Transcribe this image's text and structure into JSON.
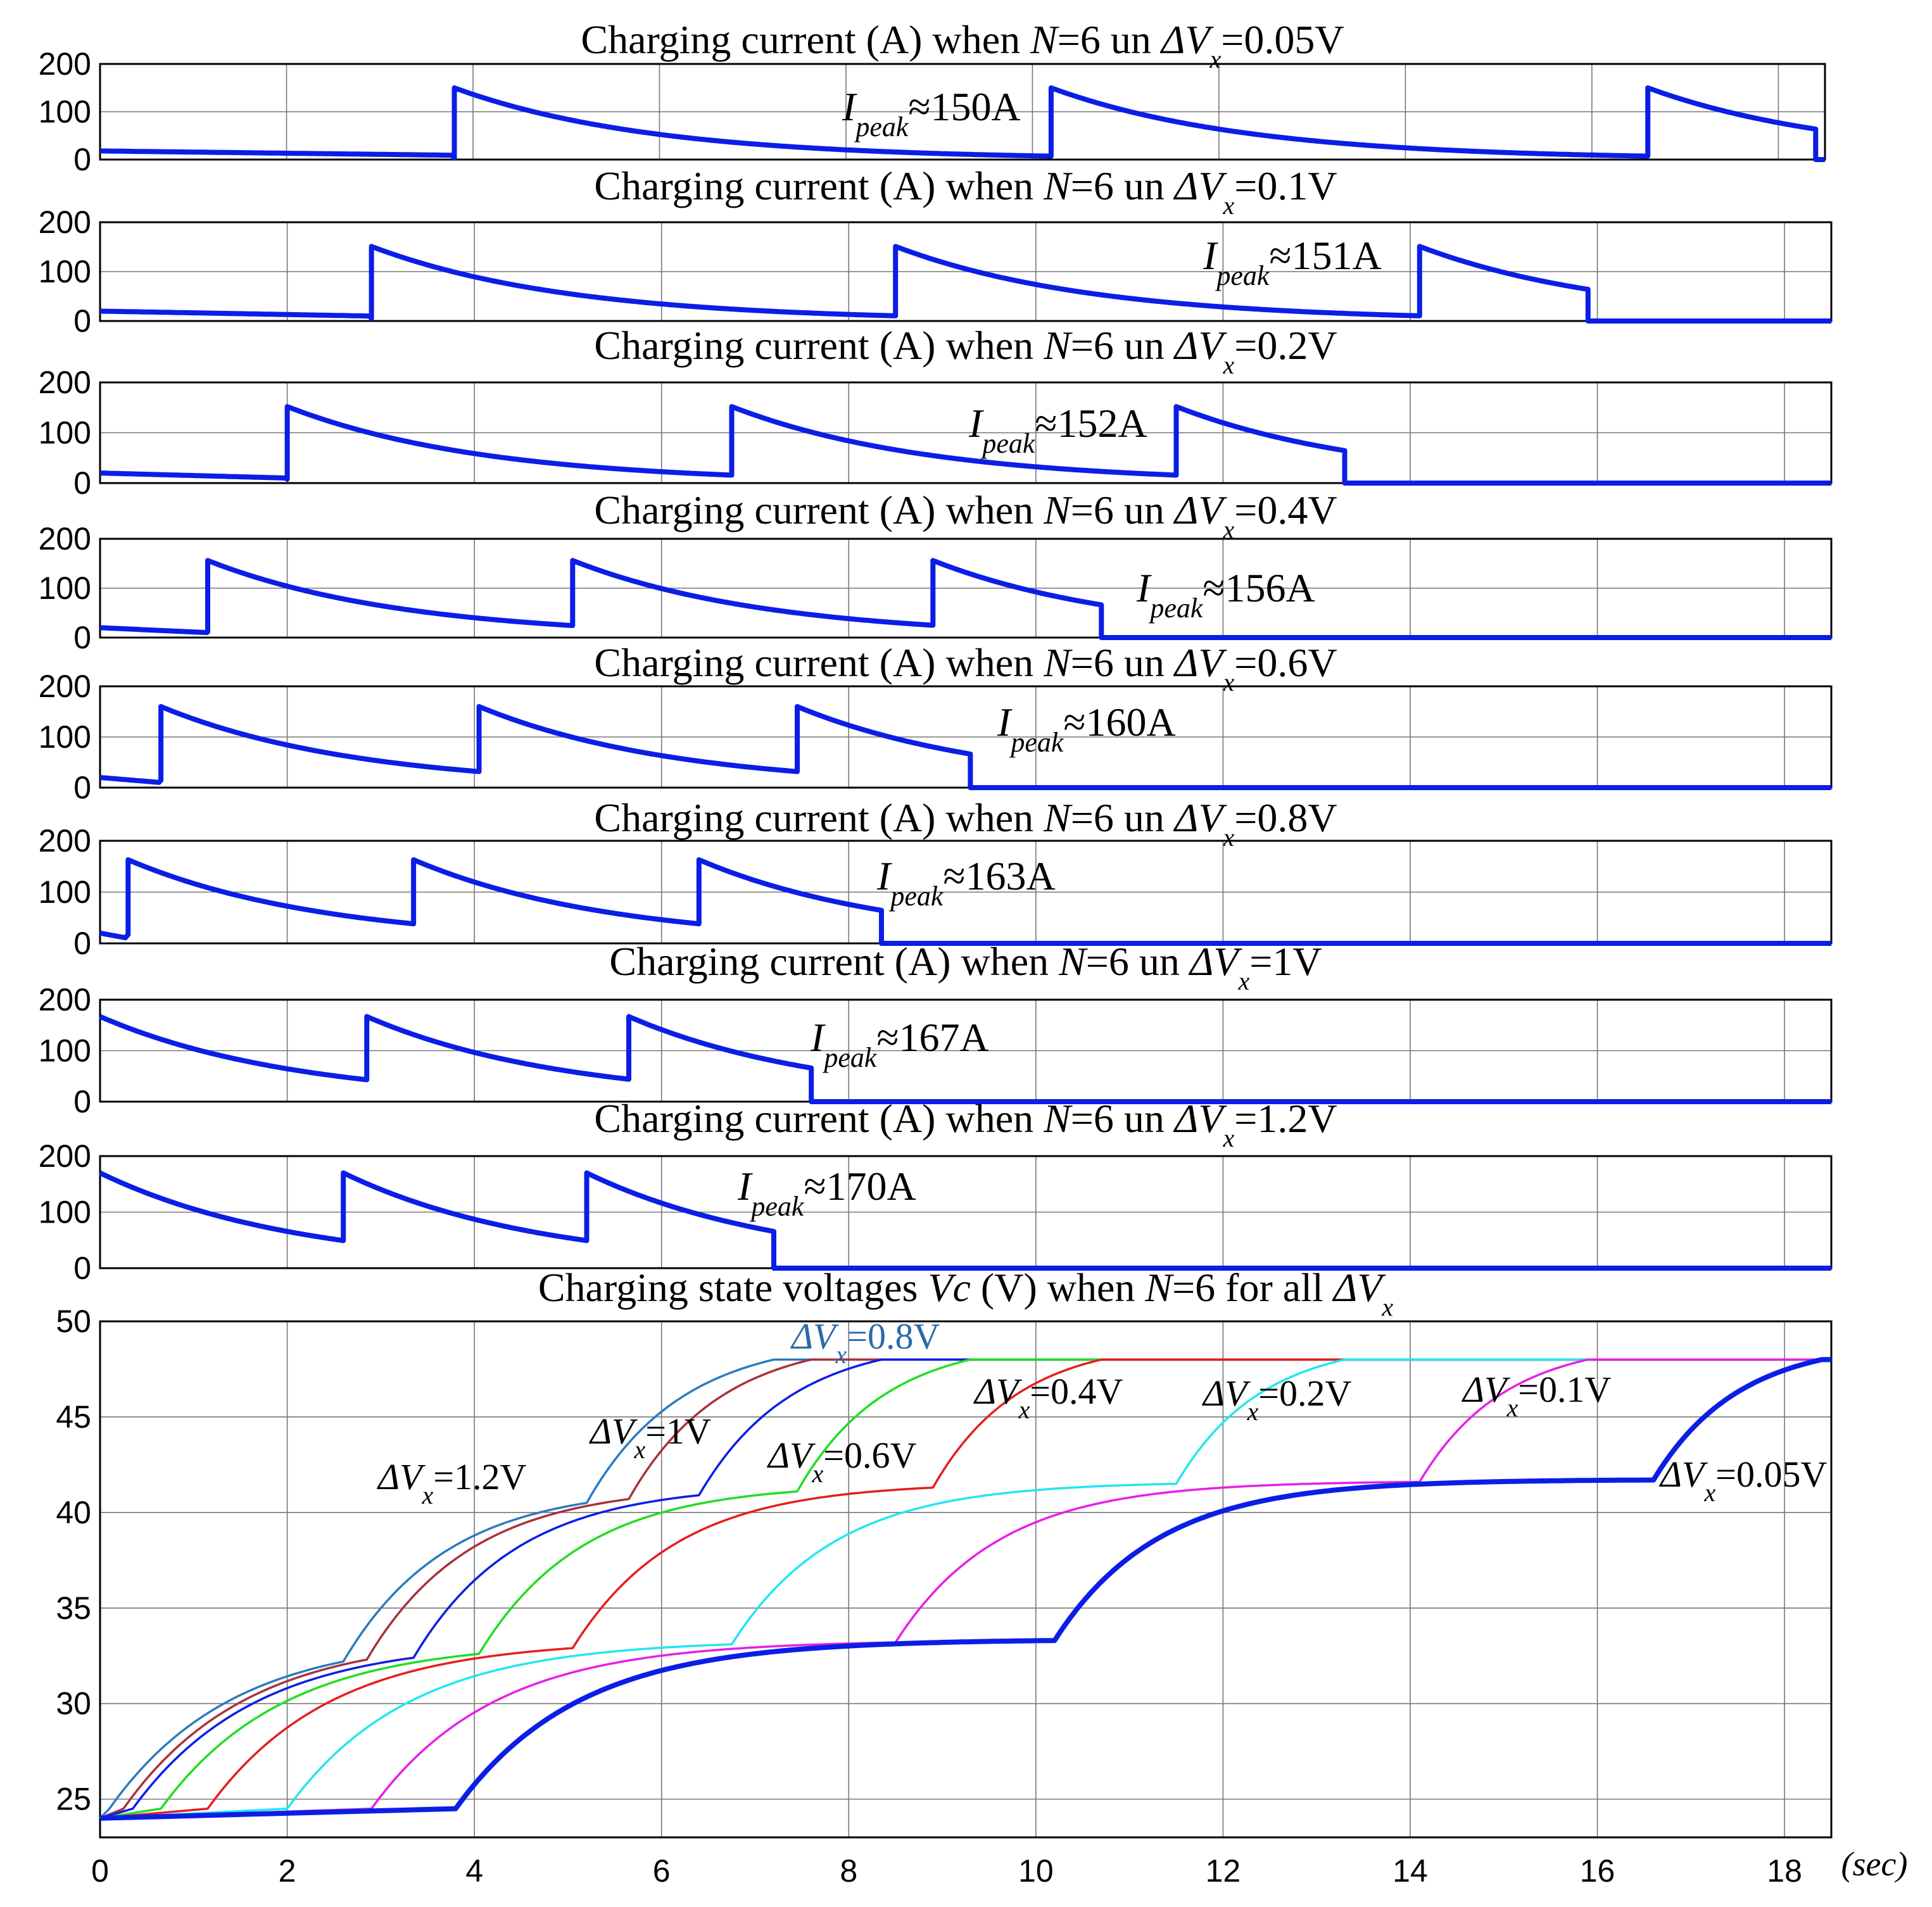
{
  "chart_data": [
    {
      "type": "line",
      "title": "Charging current (A) when N=6 un ΔVx=0.05V",
      "title_parts": [
        "Charging current (A) when ",
        "N",
        "=6 un ",
        "ΔV",
        "x",
        "=0.05V"
      ],
      "ylabel": "Charging current (A)",
      "ylim": [
        0,
        200
      ],
      "yticks": [
        0,
        100,
        200
      ],
      "xlim": [
        0,
        18.5
      ],
      "xticks": [
        0,
        2,
        4,
        6,
        8,
        10,
        12,
        14,
        16,
        18
      ],
      "grid": true,
      "color": "#0a1ee6",
      "t_start": 0,
      "i_start": 18,
      "decay_tau": 2.1,
      "pulses": [
        3.8,
        10.2,
        16.6
      ],
      "end_time": 18.4,
      "peak": 150,
      "annotation": {
        "prefix": "I",
        "sub": "peak",
        "value": "≈150A"
      }
    },
    {
      "type": "line",
      "title": "Charging current (A) when N=6 un ΔVx=0.1V",
      "title_parts": [
        "Charging current (A) when ",
        "N",
        "=6 un ",
        "ΔV",
        "x",
        "=0.1V"
      ],
      "ylabel": "Charging current (A)",
      "ylim": [
        0,
        200
      ],
      "yticks": [
        0,
        100,
        200
      ],
      "xlim": [
        0,
        18.5
      ],
      "xticks": [
        0,
        2,
        4,
        6,
        8,
        10,
        12,
        14,
        16,
        18
      ],
      "grid": true,
      "color": "#0a1ee6",
      "t_start": 0,
      "i_start": 20,
      "decay_tau": 2.1,
      "pulses": [
        2.9,
        8.5,
        14.1
      ],
      "end_time": 15.9,
      "peak": 151,
      "annotation": {
        "prefix": "I",
        "sub": "peak",
        "value": "≈151A"
      }
    },
    {
      "type": "line",
      "title": "Charging current (A) when N=6 un ΔVx=0.2V",
      "title_parts": [
        "Charging current (A) when ",
        "N",
        "=6 un ",
        "ΔV",
        "x",
        "=0.2V"
      ],
      "ylabel": "Charging current (A)",
      "ylim": [
        0,
        200
      ],
      "yticks": [
        0,
        100,
        200
      ],
      "xlim": [
        0,
        18.5
      ],
      "xticks": [
        0,
        2,
        4,
        6,
        8,
        10,
        12,
        14,
        16,
        18
      ],
      "grid": true,
      "color": "#0a1ee6",
      "t_start": 0,
      "i_start": 20,
      "decay_tau": 2.1,
      "pulses": [
        2.0,
        6.75,
        11.5
      ],
      "end_time": 13.3,
      "peak": 152,
      "annotation": {
        "prefix": "I",
        "sub": "peak",
        "value": "≈152A"
      }
    },
    {
      "type": "line",
      "title": "Charging current (A) when N=6 un ΔVx=0.4V",
      "title_parts": [
        "Charging current (A) when ",
        "N",
        "=6 un ",
        "ΔV",
        "x",
        "=0.4V"
      ],
      "ylabel": "Charging current (A)",
      "ylim": [
        0,
        200
      ],
      "yticks": [
        0,
        100,
        200
      ],
      "xlim": [
        0,
        18.5
      ],
      "xticks": [
        0,
        2,
        4,
        6,
        8,
        10,
        12,
        14,
        16,
        18
      ],
      "grid": true,
      "color": "#0a1ee6",
      "t_start": 0,
      "i_start": 20,
      "decay_tau": 2.1,
      "pulses": [
        1.15,
        5.05,
        8.9
      ],
      "end_time": 10.7,
      "peak": 156,
      "annotation": {
        "prefix": "I",
        "sub": "peak",
        "value": "≈156A"
      }
    },
    {
      "type": "line",
      "title": "Charging current (A) when N=6 un ΔVx=0.6V",
      "title_parts": [
        "Charging current (A) when ",
        "N",
        "=6 un ",
        "ΔV",
        "x",
        "=0.6V"
      ],
      "ylabel": "Charging current (A)",
      "ylim": [
        0,
        200
      ],
      "yticks": [
        0,
        100,
        200
      ],
      "xlim": [
        0,
        18.5
      ],
      "xticks": [
        0,
        2,
        4,
        6,
        8,
        10,
        12,
        14,
        16,
        18
      ],
      "grid": true,
      "color": "#0a1ee6",
      "t_start": 0,
      "i_start": 20,
      "decay_tau": 2.1,
      "pulses": [
        0.65,
        4.05,
        7.45
      ],
      "end_time": 9.3,
      "peak": 160,
      "annotation": {
        "prefix": "I",
        "sub": "peak",
        "value": "≈160A"
      }
    },
    {
      "type": "line",
      "title": "Charging current (A) when N=6 un ΔVx=0.8V",
      "title_parts": [
        "Charging current (A) when ",
        "N",
        "=6 un ",
        "ΔV",
        "x",
        "=0.8V"
      ],
      "ylabel": "Charging current (A)",
      "ylim": [
        0,
        200
      ],
      "yticks": [
        0,
        100,
        200
      ],
      "xlim": [
        0,
        18.5
      ],
      "xticks": [
        0,
        2,
        4,
        6,
        8,
        10,
        12,
        14,
        16,
        18
      ],
      "grid": true,
      "color": "#0a1ee6",
      "t_start": 0,
      "i_start": 20,
      "decay_tau": 2.1,
      "pulses": [
        0.3,
        3.35,
        6.4
      ],
      "end_time": 8.35,
      "peak": 163,
      "annotation": {
        "prefix": "I",
        "sub": "peak",
        "value": "≈163A"
      }
    },
    {
      "type": "line",
      "title": "Charging current (A) when N=6 un ΔVx=1V",
      "title_parts": [
        "Charging current (A) when ",
        "N",
        "=6 un ",
        "ΔV",
        "x",
        "=1V"
      ],
      "ylabel": "Charging current (A)",
      "ylim": [
        0,
        200
      ],
      "yticks": [
        0,
        100,
        200
      ],
      "xlim": [
        0,
        18.5
      ],
      "xticks": [
        0,
        2,
        4,
        6,
        8,
        10,
        12,
        14,
        16,
        18
      ],
      "grid": true,
      "color": "#0a1ee6",
      "t_start": 0,
      "i_start": 167,
      "decay_tau": 2.1,
      "pulses": [
        2.85,
        5.65
      ],
      "end_time": 7.6,
      "peak": 167,
      "annotation": {
        "prefix": "I",
        "sub": "peak",
        "value": "≈167A"
      }
    },
    {
      "type": "line",
      "title": "Charging current (A) when N=6 un ΔVx=1.2V",
      "title_parts": [
        "Charging current (A) when ",
        "N",
        "=6 un ",
        "ΔV",
        "x",
        "=1.2V"
      ],
      "ylabel": "Charging current (A)",
      "ylim": [
        0,
        200
      ],
      "yticks": [
        0,
        100,
        200
      ],
      "xlim": [
        0,
        18.5
      ],
      "xticks": [
        0,
        2,
        4,
        6,
        8,
        10,
        12,
        14,
        16,
        18
      ],
      "grid": true,
      "color": "#0a1ee6",
      "t_start": 0,
      "i_start": 170,
      "decay_tau": 2.1,
      "pulses": [
        2.6,
        5.2
      ],
      "end_time": 7.2,
      "peak": 170,
      "annotation": {
        "prefix": "I",
        "sub": "peak",
        "value": "≈170A"
      }
    },
    {
      "type": "line",
      "title": "Charging state voltages Vc (V) when N=6 for all ΔVx",
      "title_parts": [
        "Charging state voltages ",
        "Vc",
        " (V) when ",
        "N",
        "=6 for all ",
        "ΔV",
        "x"
      ],
      "ylabel": "Vc (V)",
      "xlabel": "(sec)",
      "ylim": [
        23,
        50
      ],
      "yticks": [
        25,
        30,
        35,
        40,
        45,
        50
      ],
      "xlim": [
        0,
        18.5
      ],
      "xticks": [
        0,
        2,
        4,
        6,
        8,
        10,
        12,
        14,
        16,
        18
      ],
      "grid": true,
      "v_start": 24,
      "v_final": 48,
      "rise_tau": 1.3,
      "plateau_tau": 1.1,
      "series": [
        {
          "name": "ΔVx=1.2V",
          "label_text": "=1.2V",
          "color": "#2b7bbf",
          "start": 0.1,
          "t1": 2.6,
          "v1": 32.2,
          "t2": 5.2,
          "v2": 40.5,
          "t3": 7.2
        },
        {
          "name": "ΔVx=1V",
          "label_text": "=1V",
          "color": "#a8323c",
          "start": 0.25,
          "t1": 2.85,
          "v1": 32.3,
          "t2": 5.65,
          "v2": 40.7,
          "t3": 7.6
        },
        {
          "name": "ΔVx=0.8V",
          "label_text": "=0.8V",
          "color": "#0a1ee6",
          "start": 0.35,
          "t1": 3.35,
          "v1": 32.4,
          "t2": 6.4,
          "v2": 40.9,
          "t3": 8.35
        },
        {
          "name": "ΔVx=0.6V",
          "label_text": "=0.6V",
          "color": "#22dd22",
          "start": 0.65,
          "t1": 4.05,
          "v1": 32.6,
          "t2": 7.45,
          "v2": 41.1,
          "t3": 9.3
        },
        {
          "name": "ΔVx=0.4V",
          "label_text": "=0.4V",
          "color": "#e61e1e",
          "start": 1.15,
          "t1": 5.05,
          "v1": 32.9,
          "t2": 8.9,
          "v2": 41.3,
          "t3": 10.7
        },
        {
          "name": "ΔVx=0.2V",
          "label_text": "=0.2V",
          "color": "#22e6f0",
          "start": 2.0,
          "t1": 6.75,
          "v1": 33.1,
          "t2": 11.5,
          "v2": 41.5,
          "t3": 13.3
        },
        {
          "name": "ΔVx=0.1V",
          "label_text": "=0.1V",
          "color": "#e620e6",
          "start": 2.9,
          "t1": 8.5,
          "v1": 33.2,
          "t2": 14.1,
          "v2": 41.6,
          "t3": 15.9
        },
        {
          "name": "ΔVx=0.05V",
          "label_text": "=0.05V",
          "color": "#0a1ee6",
          "start": 3.8,
          "t1": 10.2,
          "v1": 33.3,
          "t2": 16.6,
          "v2": 41.7,
          "t3": 18.4,
          "thick": true
        }
      ]
    }
  ]
}
